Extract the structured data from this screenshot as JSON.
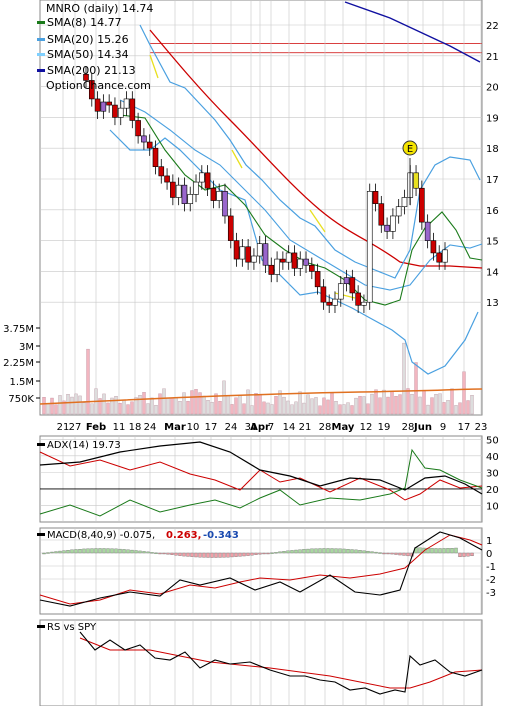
{
  "header": {
    "symbol_line": "MNRO (daily) 14.74",
    "watermark": "OptionChance.com"
  },
  "legend": [
    {
      "label": "SMA(8) 14.77",
      "color": "#1a7a1a"
    },
    {
      "label": "SMA(20) 15.26",
      "color": "#4aa0e0"
    },
    {
      "label": "SMA(50) 14.34",
      "color": "#7fd0ff"
    },
    {
      "label": "SMA(200) 21.13",
      "color": "#1010a0"
    }
  ],
  "marker": {
    "label": "E"
  },
  "colors": {
    "up": "#ffffff",
    "down": "#cc0000",
    "purple": "#9966cc",
    "yellow": "#e8e020",
    "sma8": "#1a7a1a",
    "sma20": "#4aa0e0",
    "sma50": "#7fd0ff",
    "sma200": "#1010a0",
    "red": "#cc0000",
    "grid": "#c8c8c8"
  },
  "chart_data": [
    {
      "type": "line",
      "panel": "price",
      "ylim": [
        11.5,
        23
      ],
      "y_ticks": [
        "22",
        "21",
        "20",
        "19",
        "18",
        "17",
        "16",
        "15",
        "14",
        "13"
      ],
      "volume_ticks": [
        "3.75M",
        "3M",
        "2.25M",
        "1.5M",
        "750K"
      ],
      "x_ticks": [
        "21",
        "27",
        "Feb",
        "11",
        "18",
        "24",
        "Mar",
        "10",
        "17",
        "24",
        "31",
        "Apr",
        "7",
        "14",
        "21",
        "28",
        "May",
        "12",
        "19",
        "28",
        "Jun",
        "9",
        "17",
        "23"
      ],
      "resistance_lines": [
        21.4,
        21.1
      ],
      "series": [
        {
          "name": "SMA(8) 14.77"
        },
        {
          "name": "SMA(20) 15.26"
        },
        {
          "name": "SMA(50) 14.34"
        },
        {
          "name": "SMA(200) 21.13"
        }
      ]
    },
    {
      "type": "line",
      "panel": "adx",
      "title": "ADX(14) 19.73",
      "y_ticks": [
        "50",
        "40",
        "30",
        "20",
        "10"
      ]
    },
    {
      "type": "bar",
      "panel": "macd",
      "title": "MACD(8,40,9) -0.075,",
      "values_label": [
        "0.263,",
        "-0.343"
      ],
      "y_ticks": [
        "1",
        "0",
        "-1",
        "-2",
        "-3"
      ]
    },
    {
      "type": "line",
      "panel": "rs",
      "title": "RS vs SPY"
    }
  ]
}
